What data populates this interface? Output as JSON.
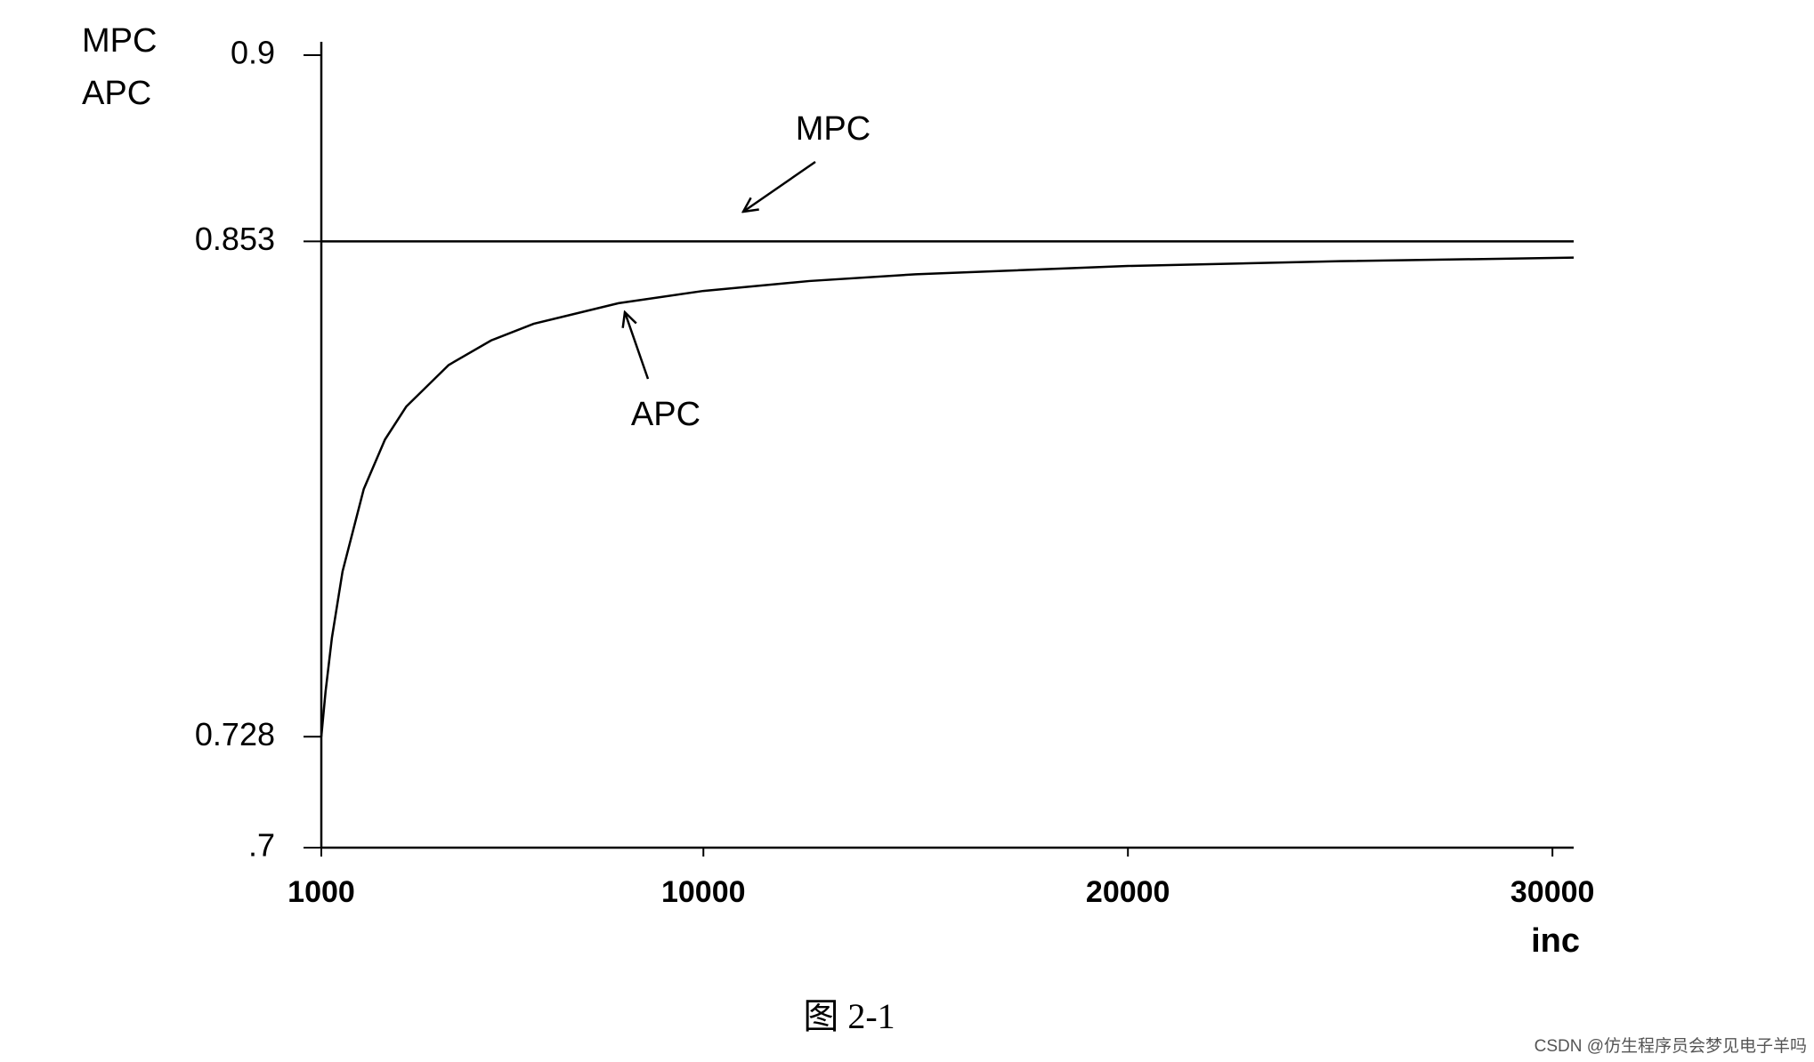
{
  "chart_data": {
    "type": "line",
    "ylabel": [
      "MPC",
      "APC"
    ],
    "xlabel": "inc",
    "caption": "图 2-1",
    "watermark": "CSDN @仿生程序员会梦见电子羊吗",
    "series": [
      {
        "name": "MPC",
        "color": "#000000",
        "x": [
          1000,
          30500
        ],
        "values": [
          0.853,
          0.853
        ]
      },
      {
        "name": "APC",
        "color": "#000000",
        "x": [
          1000,
          1100,
          1250,
          1500,
          2000,
          2500,
          3000,
          4000,
          5000,
          6000,
          8000,
          10000,
          12500,
          15000,
          20000,
          25000,
          30500
        ],
        "values": [
          0.728,
          0.7394,
          0.753,
          0.7697,
          0.7905,
          0.803,
          0.8113,
          0.8218,
          0.828,
          0.8322,
          0.8374,
          0.8405,
          0.843,
          0.8447,
          0.8468,
          0.848,
          0.8489
        ]
      }
    ],
    "xlim": [
      1000,
      30500
    ],
    "xticks": [
      1000,
      10000,
      20000,
      30000
    ],
    "ylim": [
      0.7,
      0.9
    ],
    "yticks": [
      {
        "value": 0.7,
        "label": ".7"
      },
      0.728,
      0.853,
      0.9
    ],
    "grid": false
  }
}
